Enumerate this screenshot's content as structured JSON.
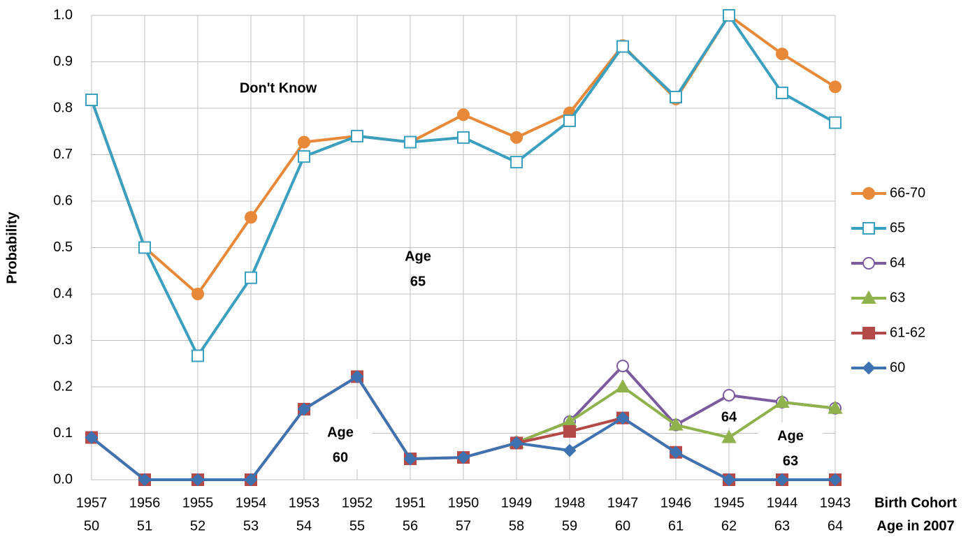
{
  "chart_data": {
    "type": "line",
    "y_label": "Probability",
    "x_label": "Birth Cohort",
    "x_label_2": "Age in 2007",
    "categories": [
      "1957",
      "1956",
      "1955",
      "1954",
      "1953",
      "1952",
      "1951",
      "1950",
      "1949",
      "1948",
      "1947",
      "1946",
      "1945",
      "1944",
      "1943"
    ],
    "categories_age": [
      "50",
      "51",
      "52",
      "53",
      "54",
      "55",
      "56",
      "57",
      "58",
      "59",
      "60",
      "61",
      "62",
      "63",
      "64"
    ],
    "ylim": [
      0,
      1
    ],
    "yticks": [
      {
        "value": 0,
        "label": "0.0"
      },
      {
        "value": 0.1,
        "label": "0.1"
      },
      {
        "value": 0.2,
        "label": "0.2"
      },
      {
        "value": 0.3,
        "label": "0.3"
      },
      {
        "value": 0.4,
        "label": "0.4"
      },
      {
        "value": 0.5,
        "label": "0.5"
      },
      {
        "value": 0.6,
        "label": "0.6"
      },
      {
        "value": 0.7,
        "label": "0.7"
      },
      {
        "value": 0.8,
        "label": "0.8"
      },
      {
        "value": 0.9,
        "label": "0.9"
      },
      {
        "value": 1,
        "label": "1.0"
      }
    ],
    "grid": true,
    "legend": "right",
    "series": [
      {
        "name": "66-70",
        "color": "#e8893a",
        "marker": "circle",
        "marker_filled": true,
        "values": [
          0.818,
          0.5,
          0.4,
          0.565,
          0.727,
          0.74,
          0.727,
          0.786,
          0.737,
          0.79,
          0.935,
          0.82,
          1.0,
          0.917,
          0.846
        ]
      },
      {
        "name": "65",
        "color": "#3b9fbf",
        "marker": "square",
        "marker_filled": false,
        "values": [
          0.818,
          0.5,
          0.267,
          0.435,
          0.696,
          0.74,
          0.727,
          0.737,
          0.684,
          0.773,
          0.933,
          0.824,
          1.0,
          0.833,
          0.769
        ]
      },
      {
        "name": "64",
        "color": "#7b5a9e",
        "marker": "circle",
        "marker_filled": false,
        "values": [
          null,
          null,
          null,
          null,
          null,
          null,
          null,
          null,
          0.08,
          0.125,
          0.245,
          0.118,
          0.182,
          0.167,
          0.154
        ]
      },
      {
        "name": "63",
        "color": "#8fb24d",
        "marker": "triangle",
        "marker_filled": true,
        "values": [
          null,
          null,
          null,
          null,
          null,
          null,
          null,
          null,
          0.08,
          0.125,
          0.2,
          0.118,
          0.091,
          0.167,
          0.154
        ]
      },
      {
        "name": "61-62",
        "color": "#b34a47",
        "marker": "square",
        "marker_filled": true,
        "values": [
          0.091,
          0,
          0,
          0,
          0.152,
          0.222,
          0.045,
          0.048,
          0.079,
          0.104,
          0.133,
          0.059,
          0,
          0,
          0
        ]
      },
      {
        "name": "60",
        "color": "#3f72b0",
        "marker": "diamond",
        "marker_filled": true,
        "values": [
          0.091,
          0,
          0,
          0,
          0.152,
          0.222,
          0.045,
          0.048,
          0.079,
          0.063,
          0.133,
          0.059,
          0,
          0,
          0
        ]
      }
    ],
    "annotations": [
      {
        "lines": [
          "Don't Know"
        ],
        "boxed": false
      },
      {
        "lines": [
          "Age",
          "65"
        ],
        "boxed": false
      },
      {
        "lines": [
          "Age",
          "60"
        ],
        "boxed": true
      },
      {
        "lines": [
          "64"
        ],
        "boxed": true
      },
      {
        "lines": [
          "Age",
          "63"
        ],
        "boxed": true
      }
    ]
  }
}
